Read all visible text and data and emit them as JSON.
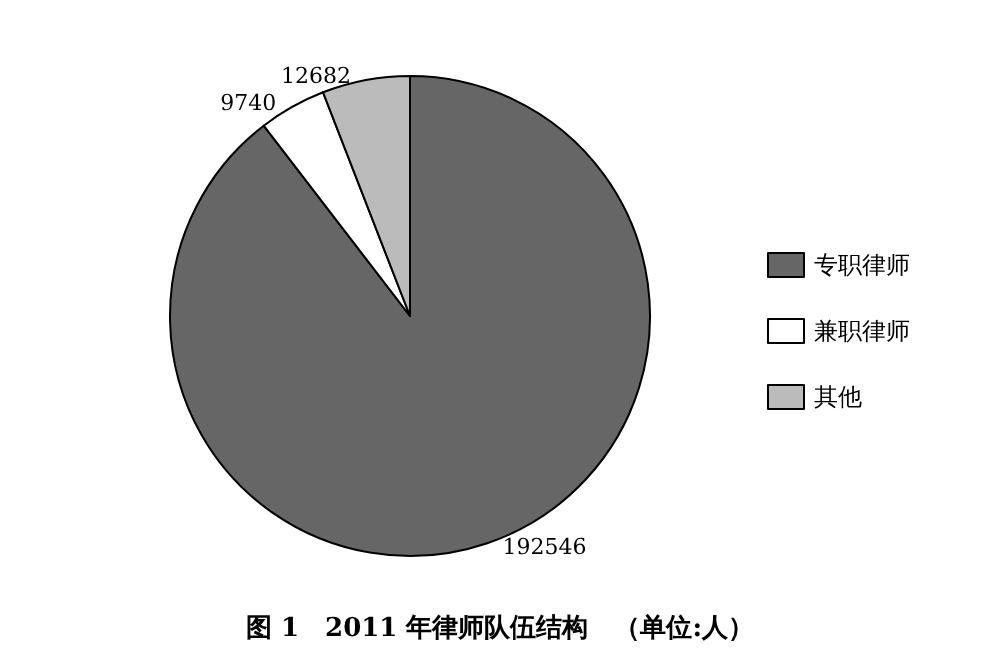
{
  "chart_data": {
    "type": "pie",
    "title": "图 1　2011 年律师队伍结构　（单位:人）",
    "categories": [
      "专职律师",
      "兼职律师",
      "其他"
    ],
    "values": [
      192546,
      9740,
      12682
    ],
    "colors": [
      "#666666",
      "#ffffff",
      "#bbbbbb"
    ],
    "data_labels": true,
    "legend": "right"
  }
}
